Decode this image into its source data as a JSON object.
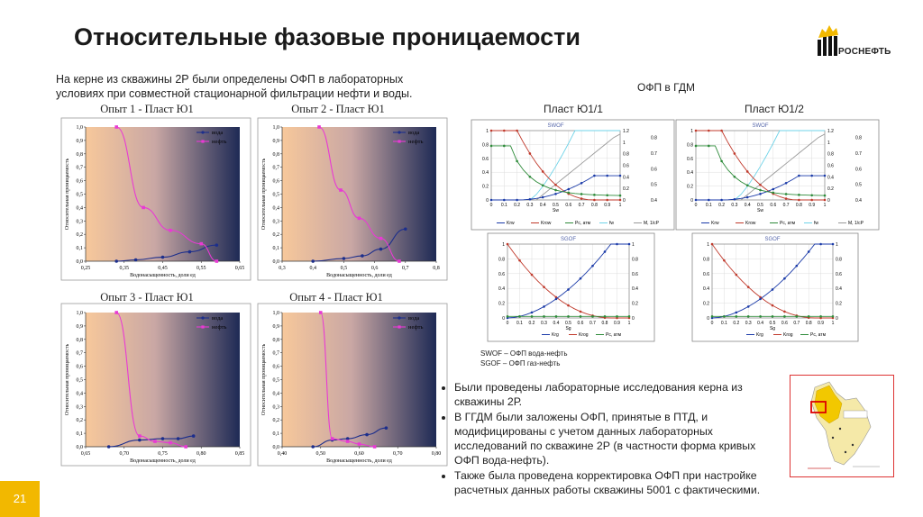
{
  "slide": {
    "title": "Относительные фазовые проницаемости",
    "intro": "На керне из скважины 2Р были определены ОФП в лабораторных условиях при совместной стационарной фильтрации нефти и воды.",
    "gdm_heading": "ОФП в ГДМ",
    "logo_text": "РОСНЕФТЬ",
    "notes": [
      "SWOF – ОФП вода-нефть",
      "SGOF – ОФП газ-нефть"
    ],
    "bullets": [
      "Были проведены лабораторные исследования керна из скважины 2Р.",
      "В ГГДМ были заложены ОФП, принятые в ПТД, и модифицированы с учетом данных лабораторных исследований по скважине 2Р (в частности форма кривых ОФП вода-нефть).",
      "Также была проведена корректировка ОФП при настройке расчетных данных работы скважины 5001 с фактическими."
    ],
    "page_number": "21",
    "colors": {
      "water": "#1c2e8c",
      "oil": "#e83ad4",
      "bg_left": "#f7c89b",
      "bg_right": "#1e2a55",
      "accent": "#f2b800"
    }
  },
  "chart_data": [
    {
      "type": "line",
      "title": "Опыт 1 - Пласт Ю1",
      "xlabel": "Водонасыщенность, доли ед",
      "ylabel": "Относительная проницаемость",
      "xlim": [
        0.25,
        0.65
      ],
      "xticks": [
        "0,25",
        "0,35",
        "0,45",
        "0,55",
        "0,65"
      ],
      "ylim": [
        0,
        1
      ],
      "yticks": [
        "0,0",
        "0,1",
        "0,2",
        "0,3",
        "0,4",
        "0,5",
        "0,6",
        "0,7",
        "0,8",
        "0,9",
        "1,0"
      ],
      "series": [
        {
          "name": "вода",
          "x": [
            0.33,
            0.38,
            0.45,
            0.52,
            0.59
          ],
          "y": [
            0.0,
            0.01,
            0.03,
            0.07,
            0.12
          ]
        },
        {
          "name": "нефть",
          "x": [
            0.33,
            0.4,
            0.47,
            0.55,
            0.59
          ],
          "y": [
            1.0,
            0.4,
            0.23,
            0.13,
            0.0
          ]
        }
      ]
    },
    {
      "type": "line",
      "title": "Опыт 2 - Пласт Ю1",
      "xlabel": "Водонасыщенность, доли ед",
      "ylabel": "Относительная проницаемость",
      "xlim": [
        0.3,
        0.8
      ],
      "xticks": [
        "0,3",
        "0,4",
        "0,5",
        "0,6",
        "0,7",
        "0,8"
      ],
      "ylim": [
        0,
        1
      ],
      "yticks": [
        "0,0",
        "0,1",
        "0,2",
        "0,3",
        "0,4",
        "0,5",
        "0,6",
        "0,7",
        "0,8",
        "0,9",
        "1,0"
      ],
      "series": [
        {
          "name": "вода",
          "x": [
            0.4,
            0.5,
            0.56,
            0.62,
            0.7
          ],
          "y": [
            0.0,
            0.02,
            0.04,
            0.09,
            0.24
          ]
        },
        {
          "name": "нефть",
          "x": [
            0.42,
            0.49,
            0.55,
            0.62,
            0.68
          ],
          "y": [
            1.0,
            0.53,
            0.32,
            0.17,
            0.0
          ]
        }
      ]
    },
    {
      "type": "line",
      "title": "Опыт 3 - Пласт Ю1",
      "xlabel": "Водонасыщенность, доли ед",
      "ylabel": "Относительная проницаемость",
      "xlim": [
        0.65,
        0.85
      ],
      "xticks": [
        "0,65",
        "0,70",
        "0,75",
        "0,80",
        "0,85"
      ],
      "ylim": [
        0,
        1
      ],
      "yticks": [
        "0,0",
        "0,1",
        "0,2",
        "0,3",
        "0,4",
        "0,5",
        "0,6",
        "0,7",
        "0,8",
        "0,9",
        "1,0"
      ],
      "series": [
        {
          "name": "вода",
          "x": [
            0.68,
            0.72,
            0.75,
            0.77,
            0.79
          ],
          "y": [
            0.0,
            0.05,
            0.06,
            0.06,
            0.08
          ]
        },
        {
          "name": "нефть",
          "x": [
            0.69,
            0.72,
            0.74,
            0.76,
            0.78
          ],
          "y": [
            1.0,
            0.08,
            0.04,
            0.03,
            0.0
          ]
        }
      ]
    },
    {
      "type": "line",
      "title": "Опыт 4 - Пласт Ю1",
      "xlabel": "Водонасыщенность, доли ед",
      "ylabel": "Относительная проницаемость",
      "xlim": [
        0.4,
        0.8
      ],
      "xticks": [
        "0,40",
        "0,50",
        "0,60",
        "0,70",
        "0,80"
      ],
      "ylim": [
        0,
        1
      ],
      "yticks": [
        "0,0",
        "0,1",
        "0,2",
        "0,3",
        "0,4",
        "0,5",
        "0,6",
        "0,7",
        "0,8",
        "0,9",
        "1,0"
      ],
      "series": [
        {
          "name": "вода",
          "x": [
            0.48,
            0.53,
            0.57,
            0.62,
            0.67
          ],
          "y": [
            0.0,
            0.05,
            0.06,
            0.09,
            0.14
          ]
        },
        {
          "name": "нефть",
          "x": [
            0.5,
            0.53,
            0.57,
            0.6,
            0.64
          ],
          "y": [
            1.0,
            0.06,
            0.04,
            0.02,
            0.0
          ]
        }
      ]
    }
  ],
  "sim_charts": [
    {
      "kind": "SWOF",
      "heading": "Пласт Ю1/1",
      "title": "SWOF",
      "xlabel": "Sw",
      "xticks": [
        "0",
        "0.1",
        "0.2",
        "0.3",
        "0.4",
        "0.5",
        "0.6",
        "0.7",
        "0.8",
        "0.9",
        "1"
      ],
      "yticks": [
        "0",
        "0.2",
        "0.4",
        "0.6",
        "0.8",
        "1"
      ],
      "y2ticks": [
        "0",
        "0.2",
        "0.4",
        "0.6",
        "0.8",
        "1",
        "1.2"
      ],
      "y3ticks": [
        "0.4",
        "0.5",
        "0.6",
        "0.7",
        "0.8"
      ],
      "y3label": "M, 1/cP",
      "legend": [
        "Krw",
        "Krow",
        "Pc, атм",
        "fw",
        "M, 1/cP"
      ]
    },
    {
      "kind": "SWOF",
      "heading": "Пласт Ю1/2",
      "title": "SWOF",
      "xlabel": "Sw",
      "xticks": [
        "0",
        "0.1",
        "0.2",
        "0.3",
        "0.4",
        "0.5",
        "0.6",
        "0.7",
        "0.8",
        "0.9",
        "1"
      ],
      "yticks": [
        "0",
        "0.2",
        "0.4",
        "0.6",
        "0.8",
        "1"
      ],
      "y2ticks": [
        "0",
        "0.2",
        "0.4",
        "0.6",
        "0.8",
        "1",
        "1.2"
      ],
      "y3ticks": [
        "0.4",
        "0.5",
        "0.6",
        "0.7",
        "0.8"
      ],
      "y3label": "M, 1/cP",
      "legend": [
        "Krw",
        "Krow",
        "Pc, атм",
        "fw",
        "M, 1/cP"
      ]
    },
    {
      "kind": "SGOF",
      "heading": "",
      "title": "SGOF",
      "xlabel": "Sg",
      "xticks": [
        "0",
        "0.1",
        "0.2",
        "0.3",
        "0.4",
        "0.5",
        "0.6",
        "0.7",
        "0.8",
        "0.9",
        "1"
      ],
      "yticks": [
        "0",
        "0.2",
        "0.4",
        "0.6",
        "0.8",
        "1"
      ],
      "y2ticks": [
        "0",
        "0.2",
        "0.4",
        "0.6",
        "0.8",
        "1"
      ],
      "legend": [
        "Krg",
        "Krog",
        "Pc, атм"
      ]
    },
    {
      "kind": "SGOF",
      "heading": "",
      "title": "SGOF",
      "xlabel": "Sg",
      "xticks": [
        "0",
        "0.1",
        "0.2",
        "0.3",
        "0.4",
        "0.5",
        "0.6",
        "0.7",
        "0.8",
        "0.9",
        "1"
      ],
      "yticks": [
        "0",
        "0.2",
        "0.4",
        "0.6",
        "0.8",
        "1"
      ],
      "y2ticks": [
        "0",
        "0.2",
        "0.4",
        "0.6",
        "0.8",
        "1"
      ],
      "legend": [
        "Krg",
        "Krog",
        "Pc, атм"
      ]
    }
  ]
}
